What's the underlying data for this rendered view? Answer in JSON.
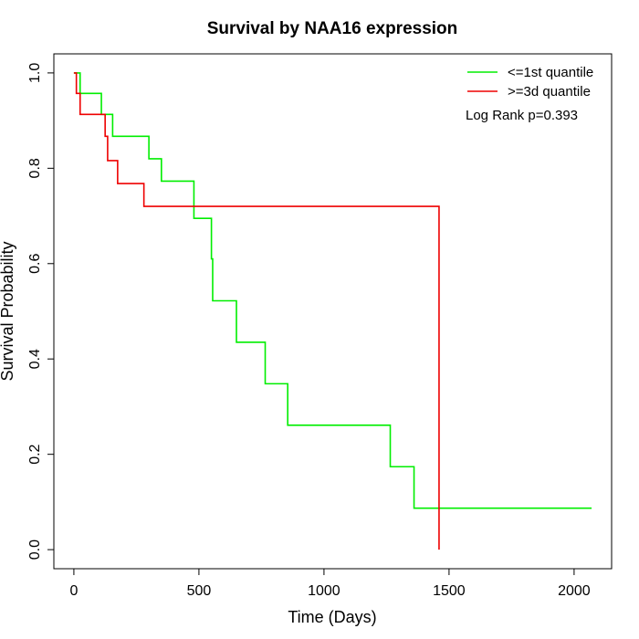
{
  "chart_data": {
    "type": "line",
    "title": "Survival by NAA16 expression",
    "xlabel": "Time (Days)",
    "ylabel": "Survival Probability",
    "xlim": [
      -80,
      2150
    ],
    "ylim": [
      -0.04,
      1.04
    ],
    "xticks": [
      0,
      500,
      1000,
      1500,
      2000
    ],
    "yticks": [
      0.0,
      0.2,
      0.4,
      0.6,
      0.8,
      1.0
    ],
    "xtick_labels": [
      "0",
      "500",
      "1000",
      "1500",
      "2000"
    ],
    "ytick_labels": [
      "0.0",
      "0.2",
      "0.4",
      "0.6",
      "0.8",
      "1.0"
    ],
    "grid": false,
    "legend_position": "top-right",
    "annotation": "Log Rank p=0.393",
    "series": [
      {
        "name": "<=1st quantile",
        "color": "#00ee00",
        "x": [
          0,
          25,
          25,
          110,
          110,
          155,
          155,
          300,
          300,
          350,
          350,
          480,
          480,
          550,
          550,
          555,
          555,
          650,
          650,
          765,
          765,
          855,
          855,
          1265,
          1265,
          1360,
          1360,
          2070
        ],
        "y": [
          1.0,
          1.0,
          0.957,
          0.957,
          0.913,
          0.913,
          0.867,
          0.867,
          0.82,
          0.82,
          0.773,
          0.773,
          0.695,
          0.695,
          0.61,
          0.61,
          0.522,
          0.522,
          0.435,
          0.435,
          0.348,
          0.348,
          0.261,
          0.261,
          0.174,
          0.174,
          0.087,
          0.087
        ]
      },
      {
        "name": ">=3d quantile",
        "color": "#ee0000",
        "x": [
          0,
          10,
          10,
          25,
          25,
          125,
          125,
          135,
          135,
          175,
          175,
          280,
          280,
          1460,
          1460
        ],
        "y": [
          1.0,
          1.0,
          0.957,
          0.957,
          0.913,
          0.913,
          0.867,
          0.867,
          0.816,
          0.816,
          0.768,
          0.768,
          0.72,
          0.72,
          0.0
        ]
      }
    ]
  }
}
